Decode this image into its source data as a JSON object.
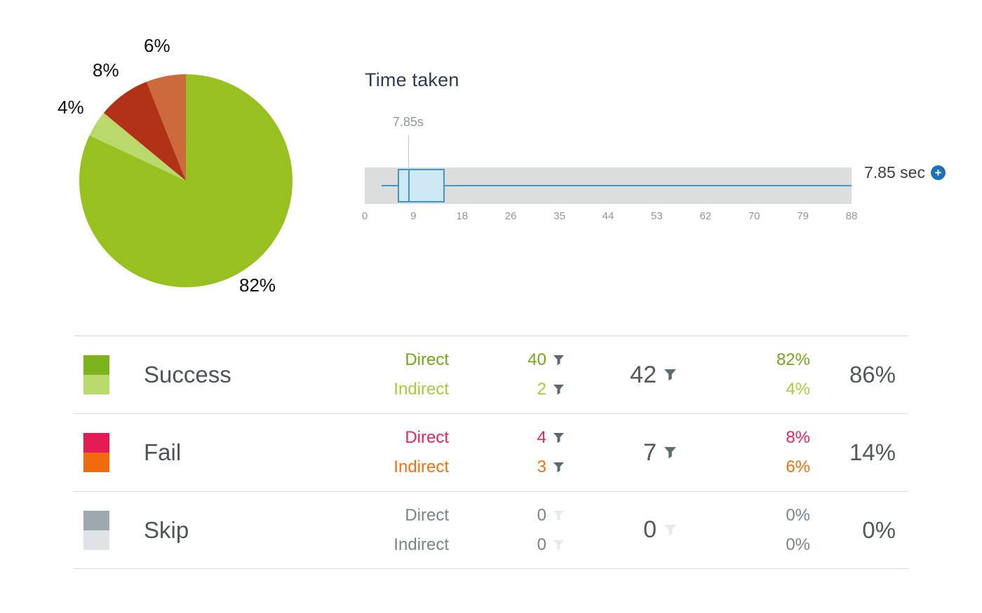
{
  "icons": {
    "plus": "+"
  },
  "chart_data": [
    {
      "type": "pie",
      "start_angle_deg": -90,
      "direction": "clockwise",
      "slices": [
        {
          "name": "success-direct",
          "label": "82%",
          "value": 82,
          "color": "#97c11e"
        },
        {
          "name": "success-indirect",
          "label": "4%",
          "value": 4,
          "color": "#bad96b"
        },
        {
          "name": "fail-direct",
          "label": "8%",
          "value": 8,
          "color": "#b23217"
        },
        {
          "name": "fail-indirect",
          "label": "6%",
          "value": 6,
          "color": "#cc6a3e"
        }
      ]
    },
    {
      "type": "boxplot",
      "title": "Time taken",
      "axis_min": 0,
      "axis_max": 88,
      "ticks": [
        "0",
        "9",
        "18",
        "26",
        "35",
        "44",
        "53",
        "62",
        "70",
        "79",
        "88"
      ],
      "whisker_min": 3,
      "q1": 6,
      "median": 7.85,
      "q3": 14.5,
      "whisker_max": 88,
      "marker_value": 7.85,
      "marker_label": "7.85s",
      "value_readout": "7.85 sec",
      "band_color": "#dcdddd",
      "box_fill": "#cfe9f4",
      "box_border": "#4596be"
    }
  ],
  "table": {
    "rows": [
      {
        "label": "Success",
        "swatch": {
          "top": "#7db41d",
          "bottom": "#bad96b"
        },
        "direct": {
          "label": "Direct",
          "value": "40",
          "pct": "82%",
          "color": "#72a716"
        },
        "indirect": {
          "label": "Indirect",
          "value": "2",
          "pct": "4%",
          "color": "#a5cd3b"
        },
        "total": "42",
        "total_pct": "86%",
        "filters_enabled": true
      },
      {
        "label": "Fail",
        "swatch": {
          "top": "#e41a54",
          "bottom": "#f2690d"
        },
        "direct": {
          "label": "Direct",
          "value": "4",
          "pct": "8%",
          "color": "#ec2356"
        },
        "indirect": {
          "label": "Indirect",
          "value": "3",
          "pct": "6%",
          "color": "#f3700e"
        },
        "total": "7",
        "total_pct": "14%",
        "filters_enabled": true
      },
      {
        "label": "Skip",
        "swatch": {
          "top": "#9ea9ae",
          "bottom": "#dfe3e5"
        },
        "direct": {
          "label": "Direct",
          "value": "0",
          "pct": "0%",
          "color": "#77848b"
        },
        "indirect": {
          "label": "Indirect",
          "value": "0",
          "pct": "0%",
          "color": "#77848b"
        },
        "total": "0",
        "total_pct": "0%",
        "filters_enabled": false
      }
    ]
  }
}
